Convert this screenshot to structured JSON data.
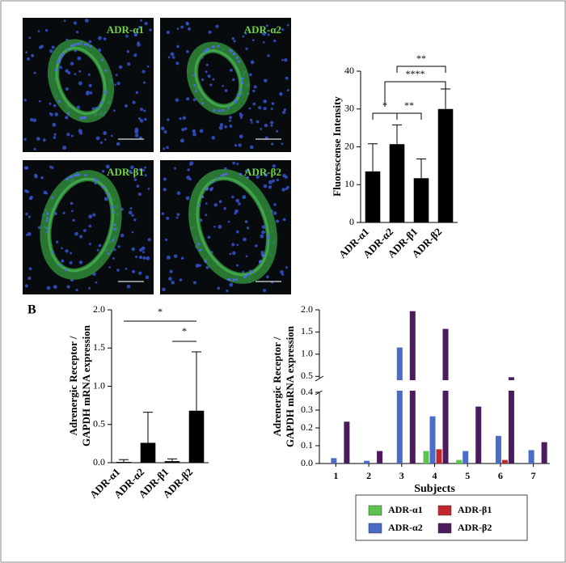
{
  "panel_labels": [
    "A",
    "B"
  ],
  "micrographs": [
    {
      "label": "ADR-α1"
    },
    {
      "label": "ADR-α2"
    },
    {
      "label": "ADR-β1"
    },
    {
      "label": "ADR-β2"
    }
  ],
  "chart_data": [
    {
      "type": "bar",
      "ylabel": "Fluorescense Intensity",
      "categories": [
        "ADR-α1",
        "ADR-α2",
        "ADR-β1",
        "ADR-β2"
      ],
      "values": [
        13.5,
        20.7,
        11.7,
        30
      ],
      "errors": [
        7.3,
        5.1,
        5.1,
        5.3
      ],
      "color": "#000000",
      "ylim": [
        0,
        40
      ],
      "yticks": [
        0,
        10,
        20,
        30,
        40
      ],
      "annotations": [
        "*",
        "**",
        "****",
        "**"
      ]
    },
    {
      "type": "bar",
      "ylabel": [
        "Adrenergic Receptor /",
        "GAPDH mRNA expression"
      ],
      "categories": [
        "ADR-α1",
        "ADR-α2",
        "ADR-β1",
        "ADR-β2"
      ],
      "values": [
        0.01,
        0.26,
        0.02,
        0.68
      ],
      "errors": [
        0.03,
        0.4,
        0.03,
        0.77
      ],
      "color": "#000000",
      "ylim": [
        0,
        2.0
      ],
      "yticks": [
        {
          "value": 0,
          "label": "0.0"
        },
        0.5,
        {
          "value": 1,
          "label": "1.0"
        },
        1.5,
        {
          "value": 2,
          "label": "2.0"
        }
      ],
      "annotations": [
        "*",
        "*"
      ]
    },
    {
      "type": "bar",
      "ylabel": [
        "Adrenergic Receptor /",
        "GAPDH mRNA expression"
      ],
      "xlabel": "Subjects",
      "categories": [
        "1",
        "2",
        "3",
        "4",
        "5",
        "6",
        "7"
      ],
      "series": [
        {
          "name": "ADR-α1",
          "color": "#5cc44c",
          "values": [
            0,
            0,
            0,
            0.07,
            0.02,
            0,
            0
          ]
        },
        {
          "name": "ADR-α2",
          "color": "#4a6bc6",
          "values": [
            0.03,
            0.015,
            1.15,
            0.265,
            0.07,
            0.155,
            0.075
          ]
        },
        {
          "name": "ADR-β1",
          "color": "#c1272d",
          "values": [
            0,
            0,
            0,
            0.08,
            0,
            0.02,
            0
          ]
        },
        {
          "name": "ADR-β2",
          "color": "#4b1b5e",
          "values": [
            0.235,
            0.07,
            1.97,
            1.57,
            0.32,
            0.48,
            0.12
          ]
        }
      ],
      "ylim": [
        0,
        2.0
      ],
      "y_break": [
        0.4,
        0.45
      ],
      "yticks": [
        {
          "value": 0,
          "label": "0.0"
        },
        0.1,
        0.2,
        0.3,
        0.4,
        0.5,
        {
          "value": 1,
          "label": "1.0"
        },
        1.5,
        {
          "value": 2,
          "label": "2.0"
        }
      ]
    }
  ]
}
